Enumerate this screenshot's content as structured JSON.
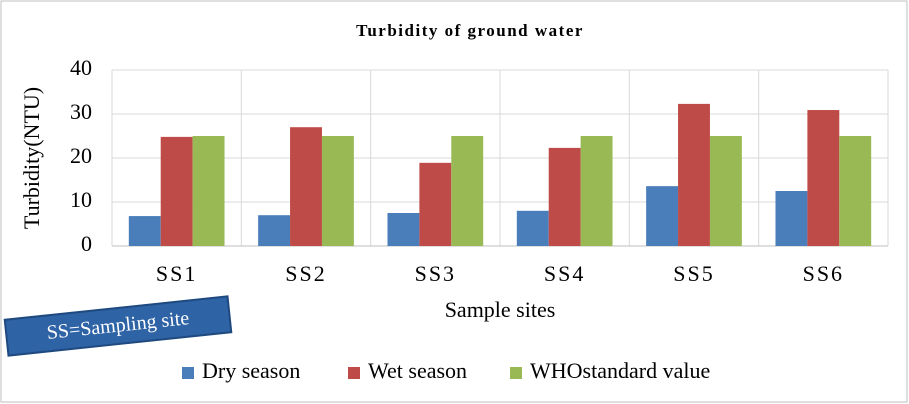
{
  "chart_data": {
    "type": "bar",
    "title": "Turbidity of ground water",
    "x_label": "Sample sites",
    "y_label": "Turbidity(NTU)",
    "annotation": "SS=Sampling site",
    "categories": [
      "SS1",
      "SS2",
      "SS3",
      "SS4",
      "SS5",
      "SS6"
    ],
    "series": [
      {
        "name": "Dry season",
        "color": "#4a7ebb",
        "values": [
          6.8,
          7.0,
          7.5,
          8.0,
          13.6,
          12.5
        ]
      },
      {
        "name": "Wet season",
        "color": "#be4b48",
        "values": [
          24.8,
          27.0,
          18.9,
          22.3,
          32.3,
          30.9
        ]
      },
      {
        "name": "WHOstandard value",
        "color": "#98b954",
        "values": [
          25,
          25,
          25,
          25,
          25,
          25
        ]
      }
    ],
    "ylim": [
      0,
      40
    ],
    "yticks": [
      0,
      10,
      20,
      30,
      40
    ],
    "grid": true,
    "legend": "bottom"
  }
}
